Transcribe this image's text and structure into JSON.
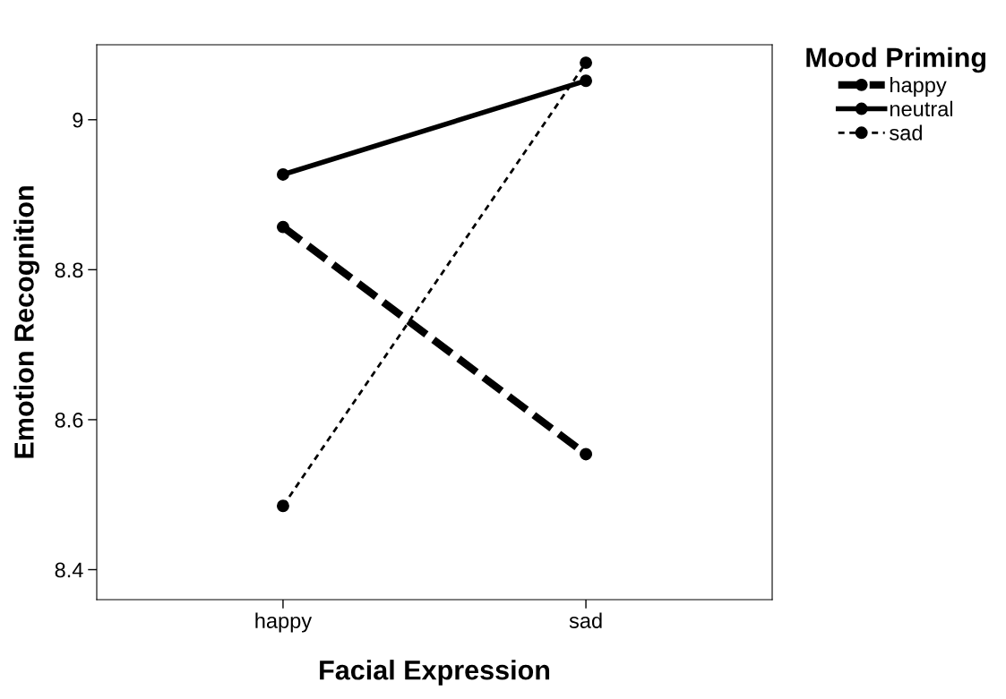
{
  "chart_data": {
    "type": "line",
    "xlabel": "Facial Expression",
    "ylabel": "Emotion Recognition",
    "legend_title": "Mood Priming",
    "categories": [
      "happy",
      "sad"
    ],
    "series": [
      {
        "name": "happy",
        "color": "#000000",
        "values": [
          8.857,
          8.554
        ],
        "line_style": "dashed"
      },
      {
        "name": "neutral",
        "color": "#000000",
        "values": [
          8.927,
          9.052
        ],
        "line_style": "solid"
      },
      {
        "name": "sad",
        "color": "#000000",
        "values": [
          8.485,
          9.076
        ],
        "line_style": "dotted"
      }
    ],
    "ylim": [
      8.36,
      9.1
    ],
    "yticks": [
      {
        "value": 8.4,
        "label": "8.4"
      },
      {
        "value": 8.6,
        "label": "8.6"
      },
      {
        "value": 8.8,
        "label": "8.8"
      },
      {
        "value": 9,
        "label": "9"
      }
    ],
    "grid": false,
    "legend": "top right",
    "marker": "circle"
  }
}
